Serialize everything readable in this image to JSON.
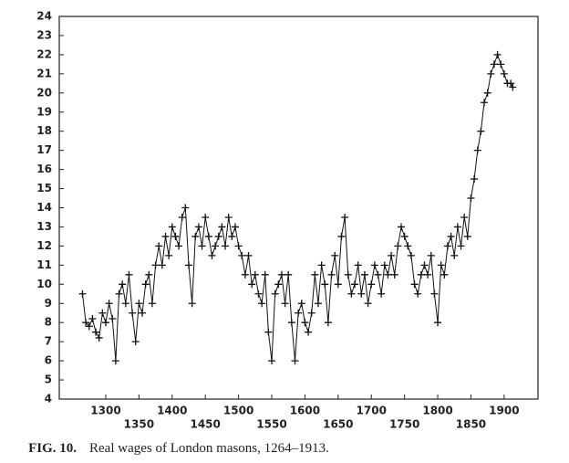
{
  "chart_data": {
    "type": "line",
    "caption_label": "FIG. 10.",
    "caption": "Real wages of London masons, 1264–1913.",
    "x": [
      1265,
      1270,
      1275,
      1280,
      1285,
      1290,
      1295,
      1300,
      1305,
      1310,
      1315,
      1320,
      1325,
      1330,
      1335,
      1340,
      1345,
      1350,
      1355,
      1360,
      1365,
      1370,
      1375,
      1380,
      1385,
      1390,
      1395,
      1400,
      1405,
      1410,
      1415,
      1420,
      1425,
      1430,
      1435,
      1440,
      1445,
      1450,
      1455,
      1460,
      1465,
      1470,
      1475,
      1480,
      1485,
      1490,
      1495,
      1500,
      1505,
      1510,
      1515,
      1520,
      1525,
      1530,
      1535,
      1540,
      1545,
      1550,
      1555,
      1560,
      1565,
      1570,
      1575,
      1580,
      1585,
      1590,
      1595,
      1600,
      1605,
      1610,
      1615,
      1620,
      1625,
      1630,
      1635,
      1640,
      1645,
      1650,
      1655,
      1660,
      1665,
      1670,
      1675,
      1680,
      1685,
      1690,
      1695,
      1700,
      1705,
      1710,
      1715,
      1720,
      1725,
      1730,
      1735,
      1740,
      1745,
      1750,
      1755,
      1760,
      1765,
      1770,
      1775,
      1780,
      1785,
      1790,
      1795,
      1800,
      1805,
      1810,
      1815,
      1820,
      1825,
      1830,
      1835,
      1840,
      1845,
      1850,
      1855,
      1860,
      1865,
      1870,
      1875,
      1880,
      1885,
      1890,
      1895,
      1900,
      1905,
      1910,
      1913
    ],
    "series": [
      {
        "color": "#111111",
        "values": [
          9.5,
          8.0,
          7.8,
          8.2,
          7.5,
          7.2,
          8.5,
          8.0,
          9.0,
          8.2,
          6.0,
          9.5,
          10.0,
          9.0,
          10.5,
          8.5,
          7.0,
          9.0,
          8.5,
          10.0,
          10.5,
          9.0,
          11.0,
          12.0,
          11.0,
          12.5,
          11.5,
          13.0,
          12.5,
          12.0,
          13.5,
          14.0,
          11.0,
          9.0,
          12.5,
          13.0,
          12.0,
          13.5,
          12.5,
          11.5,
          12.0,
          12.5,
          13.0,
          12.0,
          13.5,
          12.5,
          13.0,
          12.0,
          11.5,
          10.5,
          11.5,
          10.0,
          10.5,
          9.5,
          9.0,
          10.5,
          7.5,
          6.0,
          9.5,
          10.0,
          10.5,
          9.0,
          10.5,
          8.0,
          6.0,
          8.5,
          9.0,
          8.0,
          7.5,
          8.5,
          10.5,
          9.0,
          11.0,
          10.0,
          8.0,
          10.5,
          11.5,
          10.0,
          12.5,
          13.5,
          10.5,
          9.5,
          10.0,
          11.0,
          9.5,
          10.5,
          9.0,
          10.0,
          11.0,
          10.5,
          9.5,
          11.0,
          10.5,
          11.5,
          10.5,
          12.0,
          13.0,
          12.5,
          12.0,
          11.5,
          10.0,
          9.5,
          10.5,
          11.0,
          10.5,
          11.5,
          9.5,
          8.0,
          11.0,
          10.5,
          12.0,
          12.5,
          11.5,
          13.0,
          12.0,
          13.5,
          12.5,
          14.5,
          15.5,
          17.0,
          18.0,
          19.5,
          20.0,
          21.0,
          21.5,
          22.0,
          21.5,
          21.0,
          20.5,
          20.5,
          20.3
        ]
      }
    ],
    "xlim": [
      1230,
      1951
    ],
    "xticks": [
      1300,
      1350,
      1400,
      1450,
      1500,
      1550,
      1600,
      1650,
      1700,
      1750,
      1800,
      1850,
      1900
    ],
    "ylim": [
      4,
      24
    ],
    "yticks": [
      4,
      5,
      6,
      7,
      8,
      9,
      10,
      11,
      12,
      13,
      14,
      15,
      16,
      17,
      18,
      19,
      20,
      21,
      22,
      23,
      24
    ],
    "marker": "plus"
  }
}
